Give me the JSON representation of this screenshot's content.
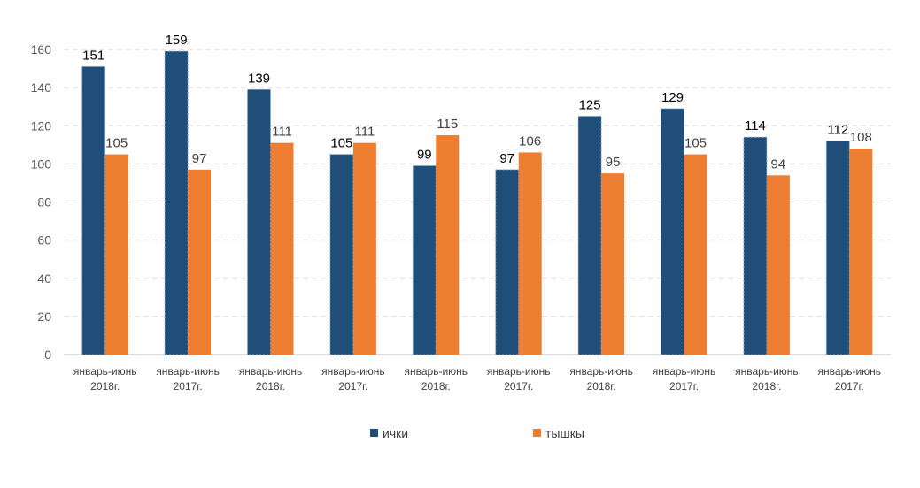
{
  "chart_data": {
    "type": "bar",
    "title": "",
    "xlabel": "",
    "ylabel": "",
    "ylim": [
      0,
      160
    ],
    "yticks": [
      0,
      20,
      40,
      60,
      80,
      100,
      120,
      140,
      160
    ],
    "grid": true,
    "legend_position": "bottom",
    "categories": [
      [
        "январь-июнь",
        "2018г."
      ],
      [
        "январь-июнь",
        "2017г."
      ],
      [
        "январь-июнь",
        "2018г."
      ],
      [
        "январь-июнь",
        "2017г."
      ],
      [
        "январь-июнь",
        "2018г."
      ],
      [
        "январь-июнь",
        "2017г."
      ],
      [
        "январь-июнь",
        "2018г."
      ],
      [
        "январь-июнь",
        "2017г."
      ],
      [
        "январь-июнь",
        "2018г."
      ],
      [
        "январь-июнь",
        "2017г."
      ]
    ],
    "series": [
      {
        "name": "ички",
        "color": "#1f4e79",
        "label_color": "#000000",
        "values": [
          151,
          159,
          139,
          105,
          99,
          97,
          125,
          129,
          114,
          112
        ]
      },
      {
        "name": "тышкы",
        "color": "#ed7d31",
        "label_color": "#404040",
        "values": [
          105,
          97,
          111,
          111,
          115,
          106,
          95,
          105,
          94,
          108
        ]
      }
    ]
  }
}
